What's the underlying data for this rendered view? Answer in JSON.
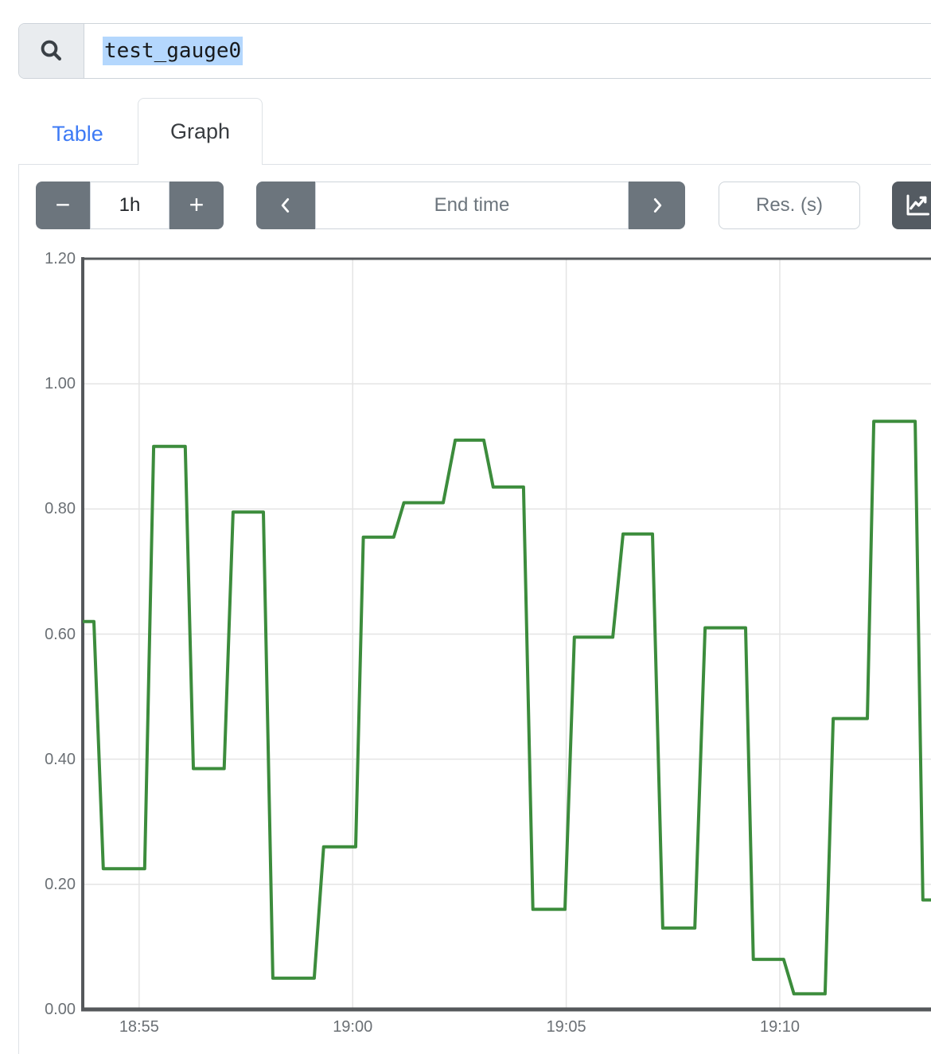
{
  "search": {
    "value": "test_gauge0",
    "icon": "search-icon"
  },
  "tabs": {
    "table": "Table",
    "graph": "Graph"
  },
  "toolbar": {
    "range_decrease": "−",
    "range_value": "1h",
    "range_increase": "+",
    "back_icon": "chevron-left",
    "end_time_placeholder": "End time",
    "forward_icon": "chevron-right",
    "res_placeholder": "Res. (s)",
    "graph_button_icon": "chart-line"
  },
  "colors": {
    "accent_blue": "#3d7af5",
    "selection_blue": "#b4d7fd",
    "button_gray": "#6c757d",
    "button_dark_gray": "#545b62",
    "tab_border": "#dee2e6",
    "input_border": "#ced4da",
    "line_green": "#3c8c3c",
    "chart_frame": "#55585b",
    "gridline": "#e4e4e4",
    "axis_text": "#6b7075"
  },
  "chart_data": {
    "type": "line",
    "step_like": true,
    "title": "",
    "xlabel": "",
    "ylabel": "",
    "grid": true,
    "legend": "none",
    "color": "#3c8c3c",
    "frame_color": "#55585b",
    "grid_color": "#e4e4e4",
    "ylim": [
      0,
      1.2
    ],
    "y_ticks": [
      {
        "label": "1.20",
        "v": 1.2
      },
      {
        "label": "1.00",
        "v": 1.0
      },
      {
        "label": "0.80",
        "v": 0.8
      },
      {
        "label": "0.60",
        "v": 0.6
      },
      {
        "label": "0.40",
        "v": 0.4
      },
      {
        "label": "0.20",
        "v": 0.2
      },
      {
        "label": "0.00",
        "v": 0.0
      }
    ],
    "x_ticks": [
      {
        "label": "18:55",
        "t": 0
      },
      {
        "label": "19:00",
        "t": 5
      },
      {
        "label": "19:05",
        "t": 10
      },
      {
        "label": "19:10",
        "t": 15
      }
    ],
    "t_unit": "minutes since 18:55",
    "t_range": [
      -1.32,
      18.54
    ],
    "points": [
      [
        -1.32,
        0.62
      ],
      [
        -1.06,
        0.62
      ],
      [
        -0.84,
        0.225
      ],
      [
        0.13,
        0.225
      ],
      [
        0.34,
        0.9
      ],
      [
        1.08,
        0.9
      ],
      [
        1.27,
        0.385
      ],
      [
        1.99,
        0.385
      ],
      [
        2.2,
        0.795
      ],
      [
        2.91,
        0.795
      ],
      [
        3.13,
        0.05
      ],
      [
        4.1,
        0.05
      ],
      [
        4.32,
        0.26
      ],
      [
        5.07,
        0.26
      ],
      [
        5.25,
        0.755
      ],
      [
        5.96,
        0.755
      ],
      [
        6.2,
        0.81
      ],
      [
        7.12,
        0.81
      ],
      [
        7.4,
        0.91
      ],
      [
        8.07,
        0.91
      ],
      [
        8.29,
        0.835
      ],
      [
        9.0,
        0.835
      ],
      [
        9.22,
        0.16
      ],
      [
        9.97,
        0.16
      ],
      [
        10.19,
        0.595
      ],
      [
        11.09,
        0.595
      ],
      [
        11.33,
        0.76
      ],
      [
        12.02,
        0.76
      ],
      [
        12.26,
        0.13
      ],
      [
        13.01,
        0.13
      ],
      [
        13.25,
        0.61
      ],
      [
        14.2,
        0.61
      ],
      [
        14.38,
        0.08
      ],
      [
        15.09,
        0.08
      ],
      [
        15.33,
        0.025
      ],
      [
        16.06,
        0.025
      ],
      [
        16.25,
        0.465
      ],
      [
        17.05,
        0.465
      ],
      [
        17.2,
        0.94
      ],
      [
        18.17,
        0.94
      ],
      [
        18.35,
        0.175
      ],
      [
        18.54,
        0.175
      ]
    ]
  }
}
